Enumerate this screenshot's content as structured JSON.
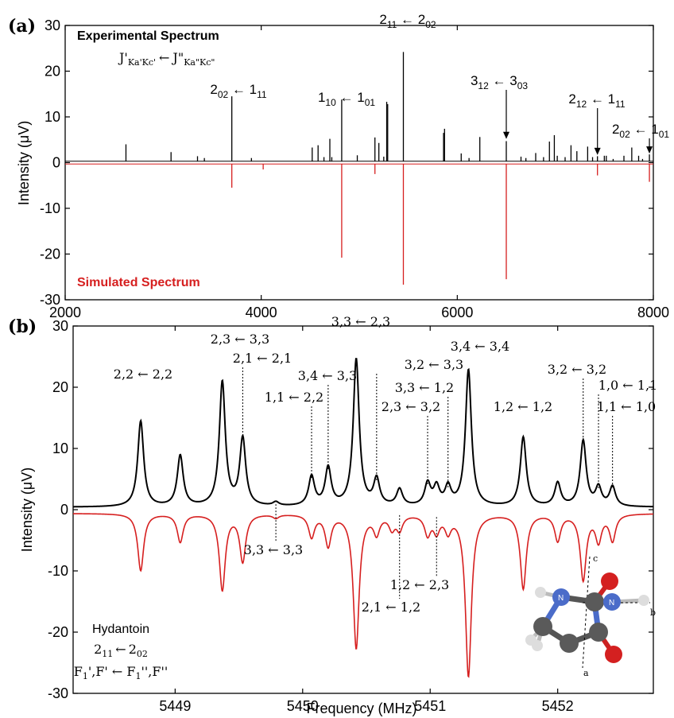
{
  "chart_data": [
    {
      "panel_label": "(a)",
      "type": "line",
      "xlim": [
        2000,
        8000
      ],
      "ylim": [
        -30,
        30
      ],
      "xticks": [
        2000,
        4000,
        6000,
        8000
      ],
      "yticks": [
        -30,
        -20,
        -10,
        0,
        10,
        20,
        30
      ],
      "xlabel": "",
      "ylabel": "Intensity (μV)",
      "grid": false,
      "legend": [
        {
          "name": "Experimental Spectrum",
          "color": "#000000",
          "position": "top-left"
        },
        {
          "name": "Simulated Spectrum",
          "color": "#d61f1f",
          "position": "bottom-left"
        }
      ],
      "notation": {
        "main": "J'",
        "sub1": "Ka'Kc'",
        "arrow": "←",
        "main2": "J\"",
        "sub2": "Ka\"Kc\""
      },
      "annotations": [
        {
          "freq": 3700,
          "label": {
            "a": "2",
            "as": "02",
            "b": "1",
            "bs": "11"
          }
        },
        {
          "freq": 4821,
          "label": {
            "a": "1",
            "as": "10",
            "b": "1",
            "bs": "01"
          }
        },
        {
          "freq": 5450,
          "label": {
            "a": "2",
            "as": "11",
            "b": "2",
            "bs": "02"
          }
        },
        {
          "freq": 6500,
          "label": {
            "a": "3",
            "as": "12",
            "b": "3",
            "bs": "03"
          },
          "arrow_to": 5
        },
        {
          "freq": 7430,
          "label": {
            "a": "2",
            "as": "12",
            "b": "1",
            "bs": "11"
          },
          "arrow_to": 1.5
        },
        {
          "freq": 7960,
          "label": {
            "a": "2",
            "as": "02",
            "b": "1",
            "bs": "01"
          },
          "arrow_to": 1.8
        }
      ],
      "series": [
        {
          "name": "Experimental Spectrum",
          "color": "#000000",
          "x": [
            2620,
            3080,
            3350,
            3420,
            3700,
            3900,
            4520,
            4580,
            4640,
            4700,
            4720,
            4821,
            4980,
            5160,
            5200,
            5250,
            5280,
            5290,
            5450,
            5860,
            5870,
            6040,
            6120,
            6230,
            6500,
            6650,
            6700,
            6800,
            6880,
            6940,
            6990,
            7020,
            7100,
            7160,
            7220,
            7330,
            7380,
            7430,
            7500,
            7520,
            7590,
            7700,
            7780,
            7850,
            7890,
            7960
          ],
          "y": [
            4,
            2.3,
            1.4,
            1,
            14.5,
            1,
            3.3,
            3.8,
            1.2,
            5.2,
            1.2,
            13.8,
            1.6,
            5.5,
            4.3,
            1.3,
            13.3,
            12.8,
            24.2,
            6.5,
            7.4,
            2,
            1,
            5.6,
            4.7,
            1.3,
            1,
            2.1,
            1.2,
            4.6,
            6,
            1.5,
            1.2,
            3.8,
            2.5,
            3.5,
            1.2,
            1.4,
            1.5,
            1.5,
            0.8,
            1.5,
            3.3,
            1.5,
            0.8,
            1.8
          ]
        },
        {
          "name": "Simulated Spectrum",
          "color": "#d61f1f",
          "x": [
            3700,
            4020,
            4821,
            5160,
            5450,
            6500,
            7430,
            7960
          ],
          "y": [
            -5.5,
            -1.5,
            -20.8,
            -2.5,
            -26.7,
            -25.5,
            -2.8,
            -4.2
          ]
        }
      ]
    },
    {
      "panel_label": "(b)",
      "type": "line",
      "xlim": [
        5448.2,
        5452.75
      ],
      "ylim": [
        -30,
        30
      ],
      "xticks": [
        5449,
        5450,
        5451,
        5452
      ],
      "yticks": [
        -30,
        -20,
        -10,
        0,
        10,
        20,
        30
      ],
      "xlabel": "Frequency (MHz)",
      "ylabel": "Intensity (μV)",
      "grid": false,
      "molecule": "Hydantoin",
      "transition": {
        "a": "2",
        "as": "11",
        "b": "2",
        "bs": "02"
      },
      "quantum_label": {
        "F1p": "F",
        "sub": "1",
        "rest": "',F' ← F",
        "sub2": "1",
        "end": "'',F''"
      },
      "molecule_axes": [
        "a",
        "b",
        "c"
      ],
      "atoms": [
        "N",
        "N"
      ],
      "line_width_mhz": 0.028,
      "series": [
        {
          "name": "Experimental Spectrum",
          "color": "#000000",
          "x": [
            5448.73,
            5449.04,
            5449.37,
            5449.53,
            5449.79,
            5450.07,
            5450.2,
            5450.42,
            5450.58,
            5450.76,
            5450.98,
            5451.05,
            5451.14,
            5451.3,
            5451.73,
            5452.0,
            5452.2,
            5452.32,
            5452.43
          ],
          "y": [
            14,
            8.3,
            20.3,
            11,
            0.6,
            4.8,
            6.2,
            24,
            4.3,
            2.7,
            3.6,
            3,
            3,
            22.3,
            11.3,
            3.8,
            10.7,
            3,
            3.2
          ]
        },
        {
          "name": "Simulated Spectrum",
          "color": "#d61f1f",
          "x": [
            5448.73,
            5449.04,
            5449.37,
            5449.53,
            5449.79,
            5450.07,
            5450.2,
            5450.42,
            5450.58,
            5450.7,
            5450.76,
            5450.98,
            5451.05,
            5451.14,
            5451.3,
            5451.73,
            5452.0,
            5452.2,
            5452.32,
            5452.43
          ],
          "y": [
            -9.3,
            -4.6,
            -12.4,
            -7.7,
            -0.6,
            -3.7,
            -5.1,
            -21.9,
            -3,
            -2.2,
            -2.4,
            -3.2,
            -2.7,
            -2.6,
            -26.5,
            -12.2,
            -4.3,
            -10.7,
            -4.3,
            -4.3
          ]
        }
      ],
      "annotations": [
        {
          "text": "2,2 ← 2,2",
          "x": 5448.73,
          "side": "top"
        },
        {
          "text": "2,3 ← 3,3",
          "x": 5449.37,
          "side": "top"
        },
        {
          "text": "2,1 ← 2,1",
          "x": 5449.53,
          "side": "top",
          "dotted": true
        },
        {
          "text": "3,4 ← 3,3",
          "x": 5450.2,
          "side": "top",
          "dotted": true
        },
        {
          "text": "1,1 ← 2,2",
          "x": 5450.07,
          "side": "top",
          "dotted": true
        },
        {
          "text": "3,3 ← 2,3",
          "x": 5450.42,
          "side": "top"
        },
        {
          "text": "3,2 ← 3,3",
          "x": 5450.58,
          "side": "top",
          "dotted": true
        },
        {
          "text": "3,3 ← 1,2",
          "x": 5451.14,
          "side": "top",
          "dotted": true
        },
        {
          "text": "2,3 ← 3,2",
          "x": 5450.98,
          "side": "top",
          "dotted": true
        },
        {
          "text": "3,4 ← 3,4",
          "x": 5451.3,
          "side": "top"
        },
        {
          "text": "1,2 ← 1,2",
          "x": 5451.73,
          "side": "top"
        },
        {
          "text": "3,2 ← 3,2",
          "x": 5452.2,
          "side": "top",
          "dotted": true
        },
        {
          "text": "1,0 ← 1,1",
          "x": 5452.32,
          "side": "top",
          "dotted": true
        },
        {
          "text": "1,1 ← 1,0",
          "x": 5452.43,
          "side": "top",
          "dotted": true
        },
        {
          "text": "3,3 ← 3,3",
          "x": 5449.79,
          "side": "bottom",
          "dotted": true
        },
        {
          "text": "2,1 ← 1,2",
          "x": 5450.76,
          "side": "bottom",
          "dotted": true
        },
        {
          "text": "1,2 ← 2,3",
          "x": 5451.05,
          "side": "bottom",
          "dotted": true
        }
      ]
    }
  ]
}
